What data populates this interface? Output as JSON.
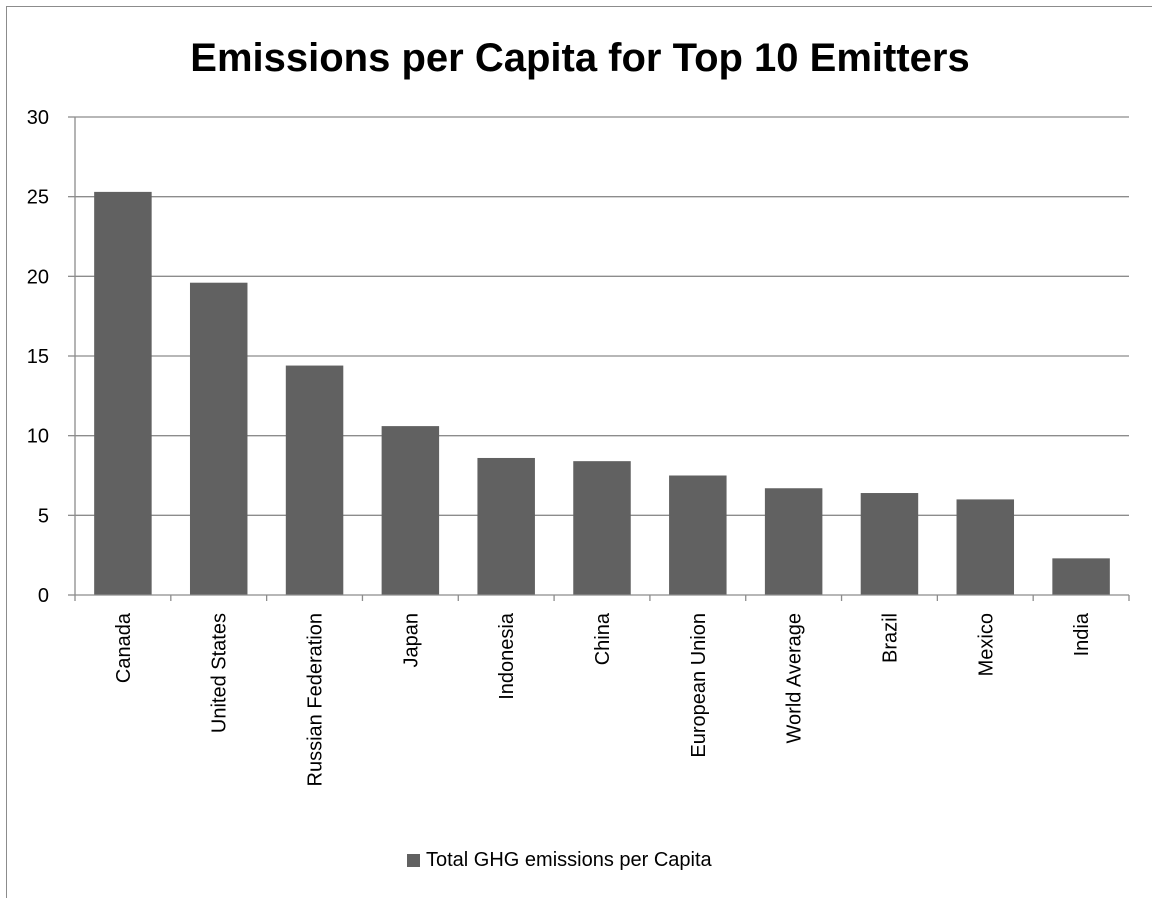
{
  "colors": {
    "bar": "#616161",
    "grid": "#8c8c8c",
    "axis": "#8c8c8c",
    "text": "#000000",
    "background": "#ffffff"
  },
  "chart_data": {
    "type": "bar",
    "title": "Emissions per Capita for Top 10 Emitters",
    "xlabel": "",
    "ylabel": "",
    "ylim": [
      0,
      30
    ],
    "yticks": [
      0,
      5,
      10,
      15,
      20,
      25,
      30
    ],
    "grid": true,
    "legend_position": "bottom",
    "categories": [
      "Canada",
      "United States",
      "Russian Federation",
      "Japan",
      "Indonesia",
      "China",
      "European Union",
      "World Average",
      "Brazil",
      "Mexico",
      "India"
    ],
    "series": [
      {
        "name": "Total GHG emissions per Capita",
        "values": [
          25.3,
          19.6,
          14.4,
          10.6,
          8.6,
          8.4,
          7.5,
          6.7,
          6.4,
          6.0,
          2.3
        ]
      }
    ]
  }
}
